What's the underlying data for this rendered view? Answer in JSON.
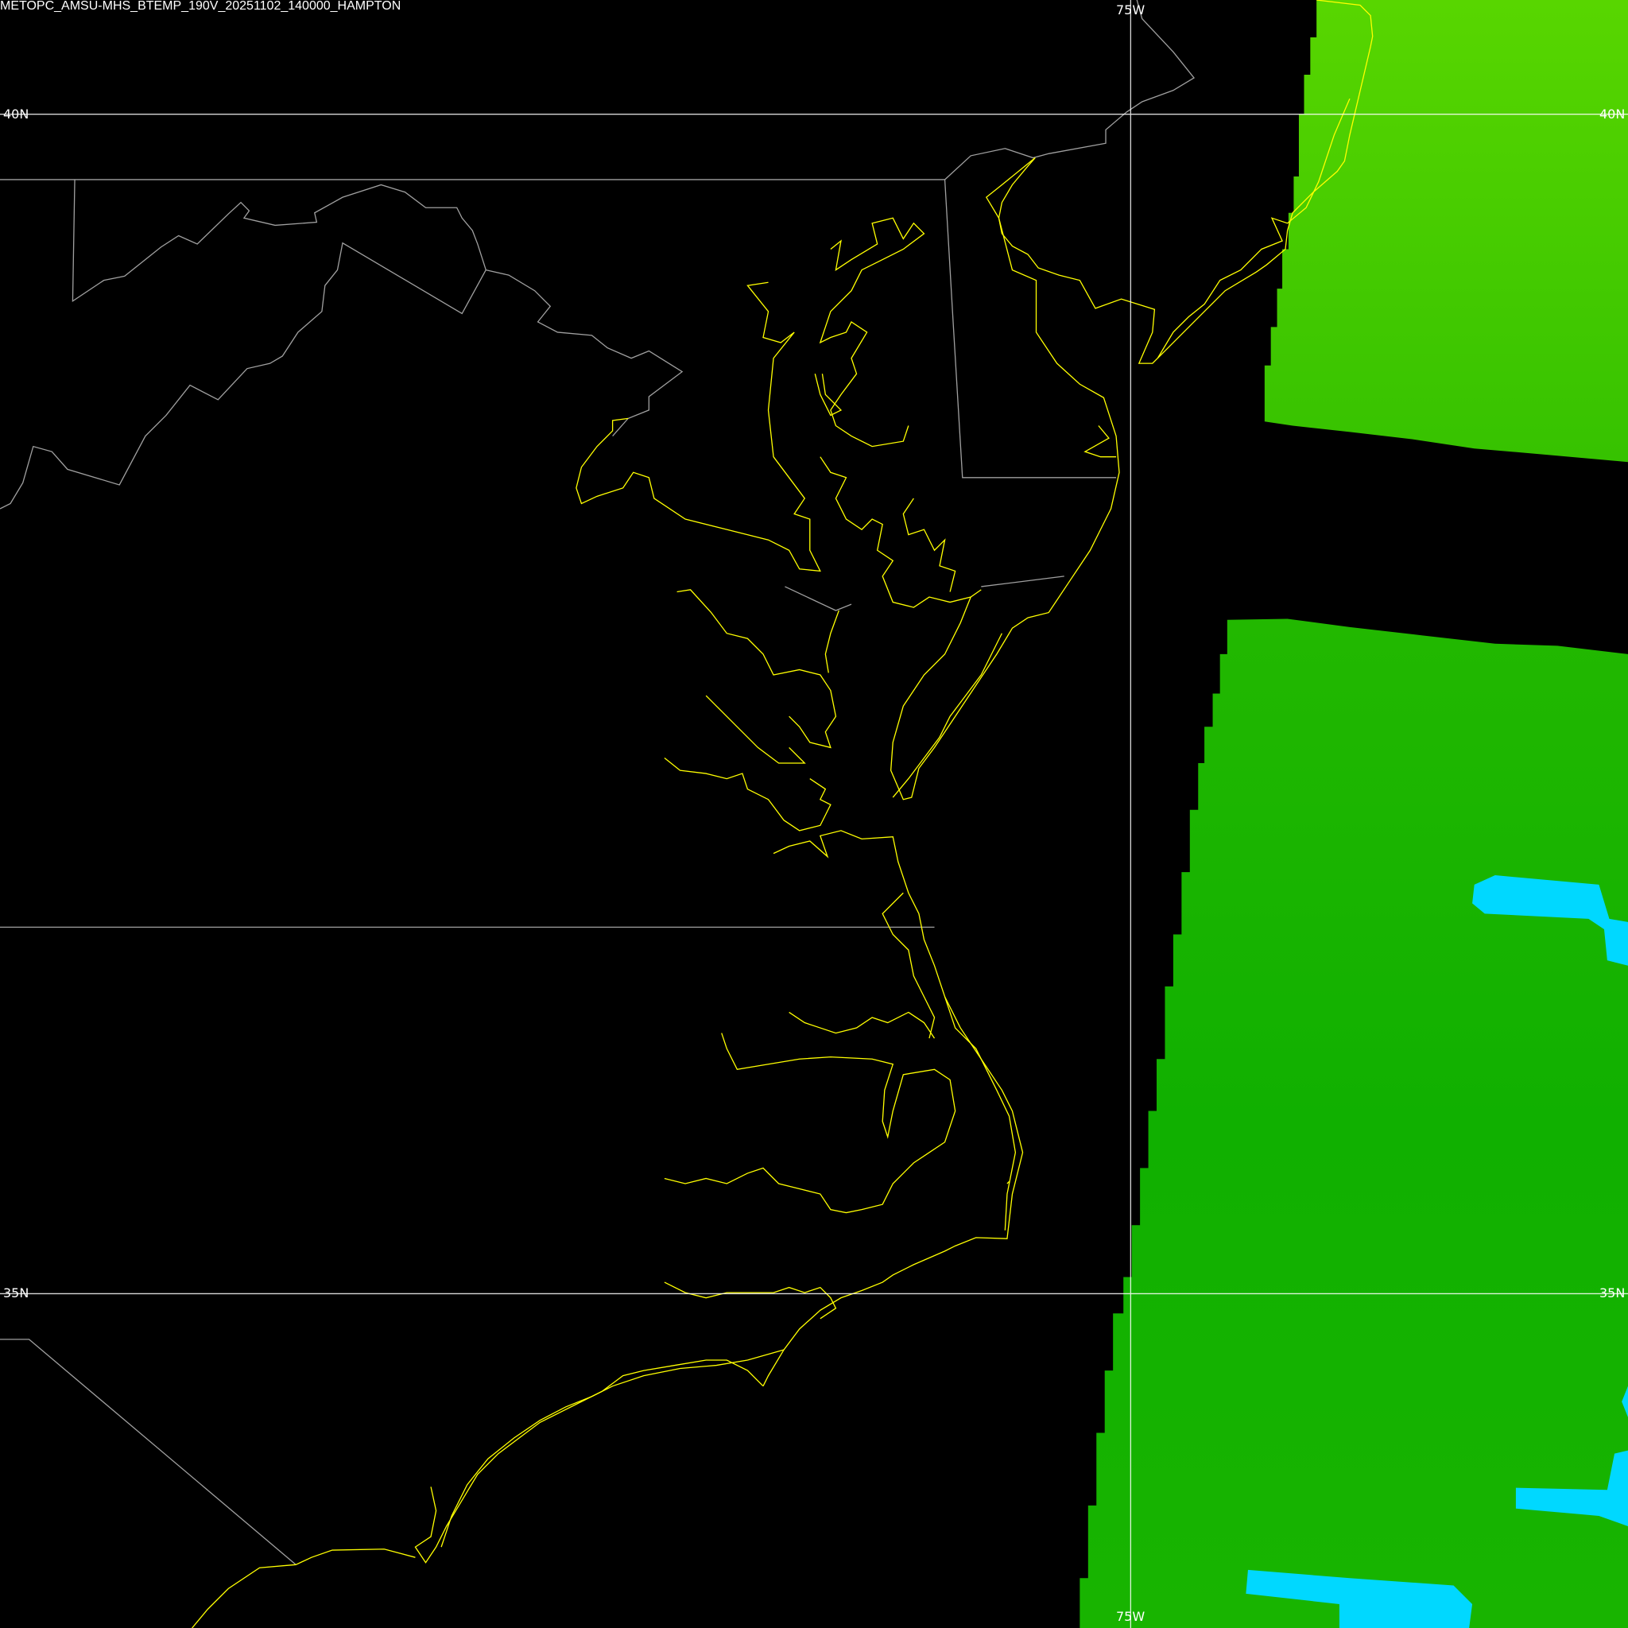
{
  "title": "METOPC_AMSU-MHS_BTEMP_190V_20251102_140000_HAMPTON",
  "gridlines": {
    "lat_labels": [
      "40N",
      "35N"
    ],
    "lon_labels": [
      "75W"
    ]
  },
  "colors": {
    "background": "#000000",
    "coastline": "#ffff00",
    "political_borders": "#a0a0a0",
    "gridlines": "#ffffff",
    "swath_north": "#4ccf00",
    "swath_south": "#14b400",
    "cold_pixels": "#00d8ff"
  }
}
